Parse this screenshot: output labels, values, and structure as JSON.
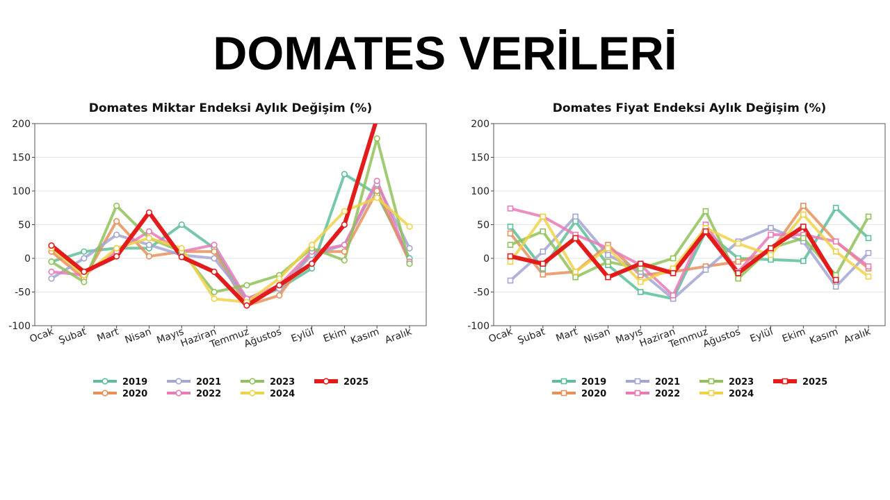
{
  "page": {
    "title": "DOMATES VERİLERİ"
  },
  "colors": {
    "2019": "#5dbf98",
    "2020": "#e8905a",
    "2021": "#a3a6d4",
    "2022": "#e87ab6",
    "2023": "#8fc25a",
    "2024": "#f0d24a",
    "2025": "#e31b1b"
  },
  "chart_data": [
    {
      "type": "line",
      "title": "Domates Miktar Endeksi Aylık Değişim (%)",
      "marker": "circle",
      "ylim": [
        -100,
        200
      ],
      "yticks": [
        -100,
        -50,
        0,
        50,
        100,
        150,
        200
      ],
      "grid": true,
      "legend": "bottom-center",
      "categories": [
        "Ocak",
        "Şubat",
        "Mart",
        "Nisan",
        "Mayıs",
        "Haziran",
        "Temmuz",
        "Ağustos",
        "Eylül",
        "Ekim",
        "Kasım",
        "Aralık"
      ],
      "series": [
        {
          "name": "2019",
          "values": [
            -5,
            10,
            15,
            15,
            50,
            15,
            -65,
            -45,
            -15,
            125,
            95,
            0
          ]
        },
        {
          "name": "2020",
          "values": [
            10,
            -30,
            55,
            3,
            10,
            10,
            -70,
            -55,
            10,
            10,
            100,
            -5
          ]
        },
        {
          "name": "2021",
          "values": [
            -30,
            0,
            35,
            20,
            5,
            0,
            -60,
            -45,
            5,
            20,
            110,
            15
          ]
        },
        {
          "name": "2022",
          "values": [
            -20,
            -25,
            10,
            40,
            10,
            20,
            -60,
            -40,
            10,
            20,
            115,
            -5
          ]
        },
        {
          "name": "2023",
          "values": [
            -5,
            -35,
            78,
            30,
            10,
            -50,
            -40,
            -25,
            15,
            -3,
            178,
            -8
          ]
        },
        {
          "name": "2024",
          "values": [
            15,
            -25,
            15,
            30,
            15,
            -60,
            -65,
            -30,
            20,
            70,
            90,
            47
          ]
        },
        {
          "name": "2025",
          "values": [
            19,
            -20,
            3,
            68,
            2,
            -20,
            -70,
            -40,
            -8,
            50,
            208,
            null
          ]
        }
      ]
    },
    {
      "type": "line",
      "title": "Domates Fiyat Endeksi Aylık Değişim (%)",
      "marker": "square",
      "ylim": [
        -100,
        200
      ],
      "yticks": [
        -100,
        -50,
        0,
        50,
        100,
        150,
        200
      ],
      "grid": true,
      "legend": "bottom-center",
      "categories": [
        "Ocak",
        "Şubat",
        "Mart",
        "Nisan",
        "Mayıs",
        "Haziran",
        "Temmuz",
        "Ağustos",
        "Eylül",
        "Ekim",
        "Kasım",
        "Aralık"
      ],
      "series": [
        {
          "name": "2019",
          "values": [
            47,
            -15,
            55,
            -10,
            -50,
            -60,
            40,
            0,
            -2,
            -4,
            75,
            30
          ]
        },
        {
          "name": "2020",
          "values": [
            37,
            -24,
            -20,
            20,
            -25,
            -20,
            -12,
            -5,
            10,
            78,
            25,
            -15
          ]
        },
        {
          "name": "2021",
          "values": [
            -33,
            10,
            62,
            5,
            -20,
            -60,
            -17,
            25,
            45,
            25,
            -42,
            8
          ]
        },
        {
          "name": "2022",
          "values": [
            74,
            62,
            35,
            15,
            -10,
            -55,
            50,
            -20,
            35,
            35,
            25,
            -12
          ]
        },
        {
          "name": "2023",
          "values": [
            20,
            40,
            -28,
            -5,
            -15,
            0,
            70,
            -30,
            15,
            30,
            -25,
            62
          ]
        },
        {
          "name": "2024",
          "values": [
            -5,
            62,
            -20,
            15,
            -35,
            -15,
            45,
            22,
            5,
            65,
            10,
            -27
          ]
        },
        {
          "name": "2025",
          "values": [
            3,
            -8,
            30,
            -28,
            -8,
            -22,
            40,
            -22,
            15,
            47,
            -32,
            null
          ]
        }
      ]
    }
  ]
}
